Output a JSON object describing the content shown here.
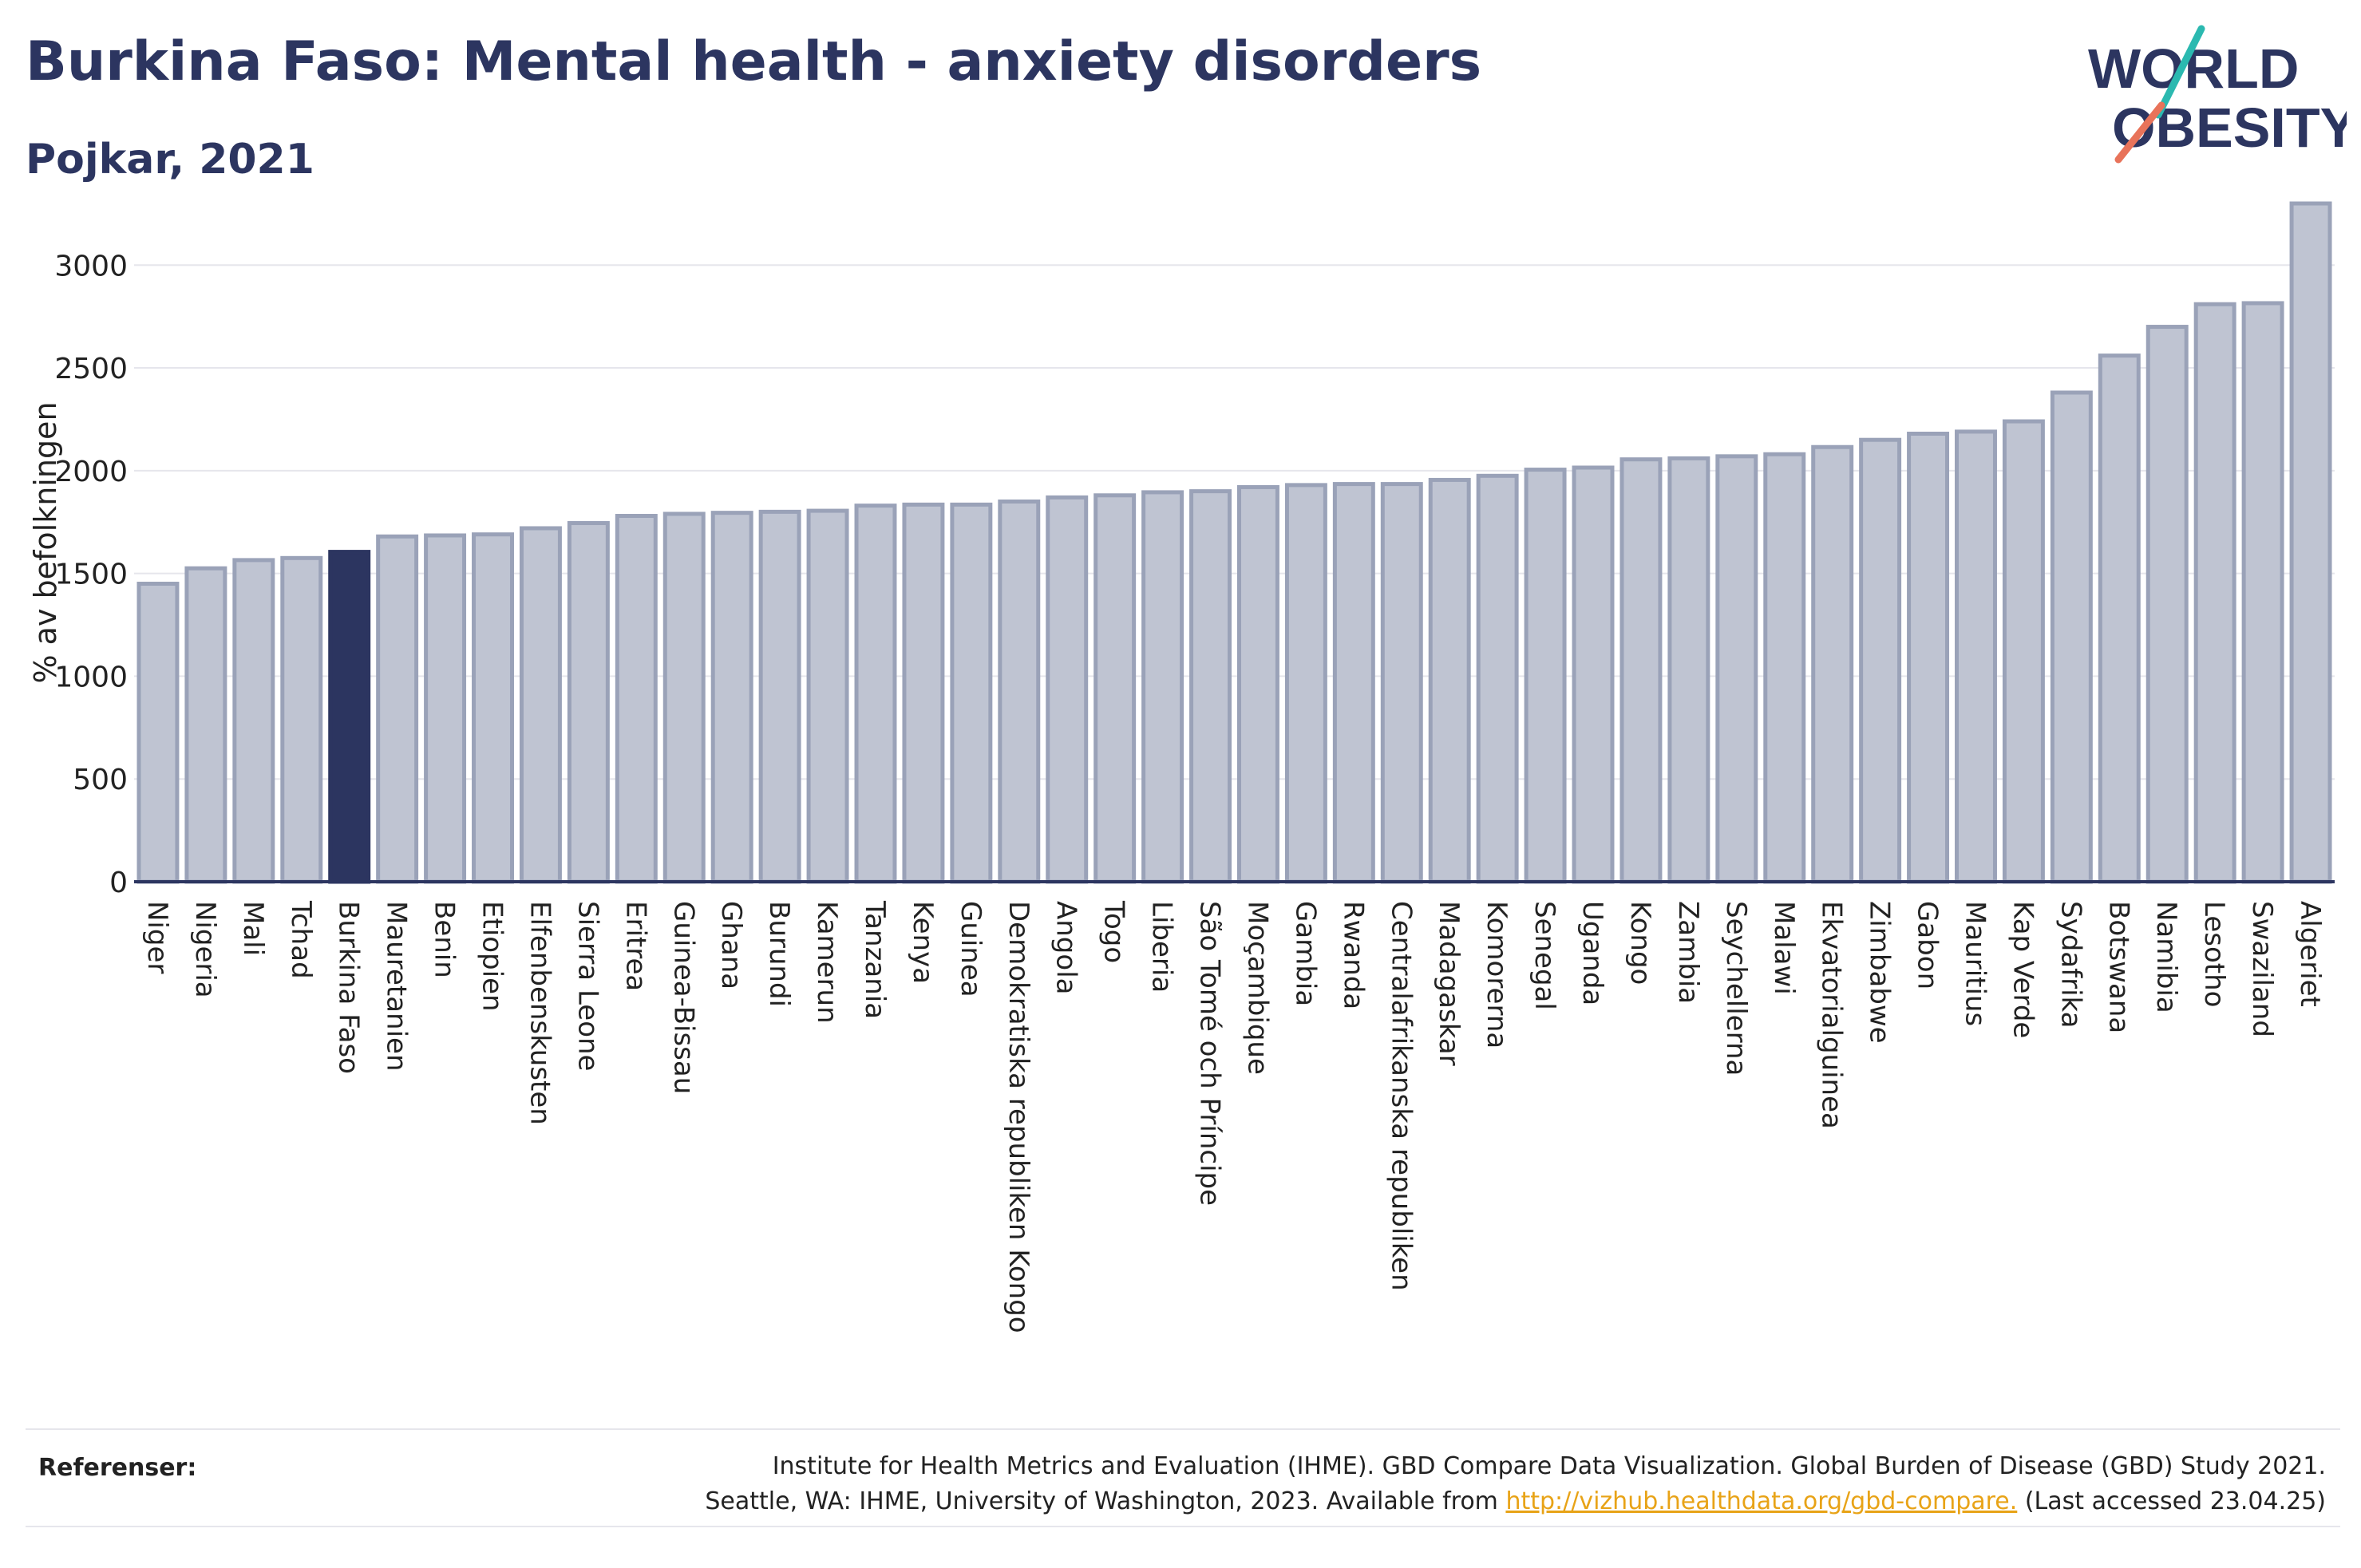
{
  "header": {
    "title": "Burkina Faso: Mental health - anxiety disorders",
    "subtitle": "Pojkar, 2021"
  },
  "logo": {
    "line1": "WORLD",
    "line2": "OBESITY",
    "slash_colors": [
      "#2bb9b0",
      "#e8735a"
    ]
  },
  "colors": {
    "bar": "#bfc4d2",
    "bar_stroke": "#9aa2b8",
    "highlight": "#2c3560",
    "axis": "#2c3560",
    "grid": "#e6e6ec",
    "text": "#222222",
    "title": "#2c3560"
  },
  "chart_data": {
    "type": "bar",
    "ylabel": "% av befolkningen",
    "xlabel": "",
    "ylim": [
      0,
      3300
    ],
    "yticks": [
      0,
      500,
      1000,
      1500,
      2000,
      2500,
      3000
    ],
    "grid": true,
    "highlight": "Burkina Faso",
    "categories": [
      "Niger",
      "Nigeria",
      "Mali",
      "Tchad",
      "Burkina Faso",
      "Mauretanien",
      "Benin",
      "Etiopien",
      "Elfenbenskusten",
      "Sierra Leone",
      "Eritrea",
      "Guinea-Bissau",
      "Ghana",
      "Burundi",
      "Kamerun",
      "Tanzania",
      "Kenya",
      "Guinea",
      "Demokratiska republiken Kongo",
      "Angola",
      "Togo",
      "Liberia",
      "São Tomé och Príncipe",
      "Moçambique",
      "Gambia",
      "Rwanda",
      "Centralafrikanska republiken",
      "Madagaskar",
      "Komorerna",
      "Senegal",
      "Uganda",
      "Kongo",
      "Zambia",
      "Seychellerna",
      "Malawi",
      "Ekvatorialguinea",
      "Zimbabwe",
      "Gabon",
      "Mauritius",
      "Kap Verde",
      "Sydafrika",
      "Botswana",
      "Namibia",
      "Lesotho",
      "Swaziland",
      "Algeriet"
    ],
    "values": [
      1450,
      1525,
      1565,
      1575,
      1605,
      1680,
      1685,
      1690,
      1720,
      1745,
      1780,
      1790,
      1795,
      1800,
      1805,
      1830,
      1835,
      1835,
      1850,
      1870,
      1880,
      1895,
      1900,
      1920,
      1930,
      1935,
      1935,
      1955,
      1975,
      2005,
      2015,
      2055,
      2060,
      2070,
      2080,
      2115,
      2150,
      2180,
      2190,
      2240,
      2380,
      2560,
      2700,
      2810,
      2815,
      3300
    ]
  },
  "references": {
    "label": "Referenser:",
    "line1": "Institute for Health Metrics and Evaluation (IHME). GBD Compare Data Visualization. Global Burden of Disease (GBD) Study 2021.",
    "line2_prefix": "Seattle, WA: IHME, University of Washington, 2023. Available from ",
    "link": "http://vizhub.healthdata.org/gbd-compare.",
    "line2_suffix": " (Last accessed 23.04.25)"
  }
}
